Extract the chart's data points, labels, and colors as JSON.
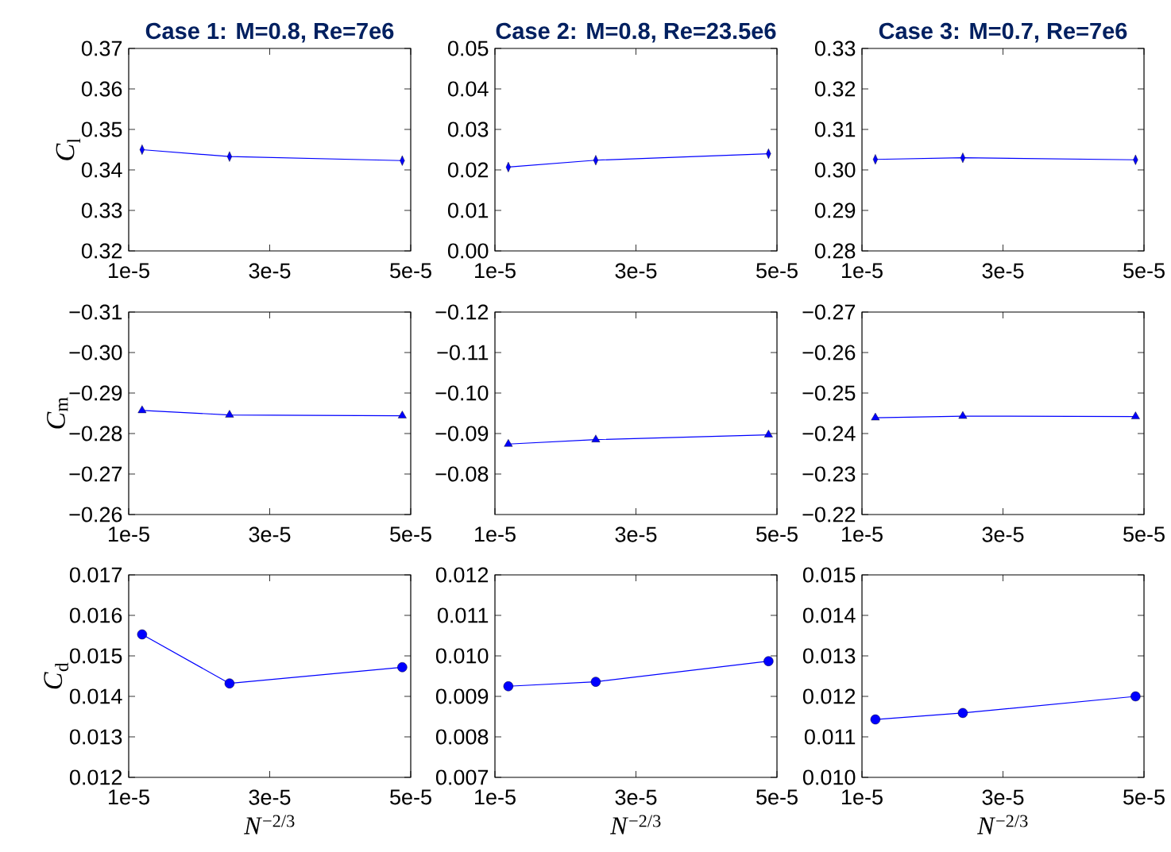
{
  "chart_data": [
    {
      "type": "line",
      "title": "Case 1: M=0.8, Re=7e6",
      "ylabel": "*C*$_{l}$",
      "x": [
        1.19e-05,
        2.43e-05,
        4.88e-05
      ],
      "values": [
        0.345,
        0.3433,
        0.3423
      ],
      "color": "#0000ff",
      "marker": "diamond",
      "xlim": [
        1e-05,
        5e-05
      ],
      "ylim": [
        0.32,
        0.37
      ],
      "xticks": [
        {
          "value": 1e-05,
          "label": "1e-5"
        },
        {
          "value": 3e-05,
          "label": "3e-5"
        },
        {
          "value": 5e-05,
          "label": "5e-5"
        }
      ],
      "yticks": [
        {
          "value": 0.32,
          "label": "0.32"
        },
        {
          "value": 0.33,
          "label": "0.33"
        },
        {
          "value": 0.34,
          "label": "0.34"
        },
        {
          "value": 0.35,
          "label": "0.35"
        },
        {
          "value": 0.36,
          "label": "0.36"
        },
        {
          "value": 0.37,
          "label": "0.37"
        }
      ]
    },
    {
      "type": "line",
      "title": "Case 2: M=0.8, Re=23.5e6",
      "x": [
        1.19e-05,
        2.43e-05,
        4.88e-05
      ],
      "values": [
        0.0207,
        0.0224,
        0.024
      ],
      "color": "#0000ff",
      "marker": "diamond",
      "xlim": [
        1e-05,
        5e-05
      ],
      "ylim": [
        0.0,
        0.05
      ],
      "xticks": [
        {
          "value": 1e-05,
          "label": "1e-5"
        },
        {
          "value": 3e-05,
          "label": "3e-5"
        },
        {
          "value": 5e-05,
          "label": "5e-5"
        }
      ],
      "yticks": [
        {
          "value": 0.0,
          "label": "0.00"
        },
        {
          "value": 0.01,
          "label": "0.01"
        },
        {
          "value": 0.02,
          "label": "0.02"
        },
        {
          "value": 0.03,
          "label": "0.03"
        },
        {
          "value": 0.04,
          "label": "0.04"
        },
        {
          "value": 0.05,
          "label": "0.05"
        }
      ]
    },
    {
      "type": "line",
      "title": "Case 3: M=0.7, Re=7e6",
      "x": [
        1.19e-05,
        2.43e-05,
        4.88e-05
      ],
      "values": [
        0.3026,
        0.303,
        0.3025
      ],
      "color": "#0000ff",
      "marker": "diamond",
      "xlim": [
        1e-05,
        5e-05
      ],
      "ylim": [
        0.28,
        0.33
      ],
      "xticks": [
        {
          "value": 1e-05,
          "label": "1e-5"
        },
        {
          "value": 3e-05,
          "label": "3e-5"
        },
        {
          "value": 5e-05,
          "label": "5e-5"
        }
      ],
      "yticks": [
        {
          "value": 0.28,
          "label": "0.28"
        },
        {
          "value": 0.29,
          "label": "0.29"
        },
        {
          "value": 0.3,
          "label": "0.30"
        },
        {
          "value": 0.31,
          "label": "0.31"
        },
        {
          "value": 0.32,
          "label": "0.32"
        },
        {
          "value": 0.33,
          "label": "0.33"
        }
      ]
    },
    {
      "type": "line",
      "ylabel": "*C*$_{m}$",
      "x": [
        1.19e-05,
        2.43e-05,
        4.88e-05
      ],
      "values": [
        -0.2857,
        -0.2846,
        -0.2844
      ],
      "color": "#0000ff",
      "marker": "triangle",
      "xlim": [
        1e-05,
        5e-05
      ],
      "ylim": [
        -0.26,
        -0.31
      ],
      "xticks": [
        {
          "value": 1e-05,
          "label": "1e-5"
        },
        {
          "value": 3e-05,
          "label": "3e-5"
        },
        {
          "value": 5e-05,
          "label": "5e-5"
        }
      ],
      "yticks": [
        {
          "value": -0.31,
          "label": "−0.31"
        },
        {
          "value": -0.3,
          "label": "−0.30"
        },
        {
          "value": -0.29,
          "label": "−0.29"
        },
        {
          "value": -0.28,
          "label": "−0.28"
        },
        {
          "value": -0.27,
          "label": "−0.27"
        },
        {
          "value": -0.26,
          "label": "−0.26"
        }
      ]
    },
    {
      "type": "line",
      "x": [
        1.19e-05,
        2.43e-05,
        4.88e-05
      ],
      "values": [
        -0.0874,
        -0.0885,
        -0.0897
      ],
      "color": "#0000ff",
      "marker": "triangle",
      "xlim": [
        1e-05,
        5e-05
      ],
      "ylim": [
        -0.07,
        -0.12
      ],
      "xticks": [
        {
          "value": 1e-05,
          "label": "1e-5"
        },
        {
          "value": 3e-05,
          "label": "3e-5"
        },
        {
          "value": 5e-05,
          "label": "5e-5"
        }
      ],
      "yticks": [
        {
          "value": -0.12,
          "label": "−0.12"
        },
        {
          "value": -0.11,
          "label": "−0.11"
        },
        {
          "value": -0.1,
          "label": "−0.10"
        },
        {
          "value": -0.09,
          "label": "−0.09"
        },
        {
          "value": -0.08,
          "label": "−0.08"
        }
      ]
    },
    {
      "type": "line",
      "x": [
        1.19e-05,
        2.43e-05,
        4.88e-05
      ],
      "values": [
        -0.2439,
        -0.2443,
        -0.2442
      ],
      "color": "#0000ff",
      "marker": "triangle",
      "xlim": [
        1e-05,
        5e-05
      ],
      "ylim": [
        -0.22,
        -0.27
      ],
      "xticks": [
        {
          "value": 1e-05,
          "label": "1e-5"
        },
        {
          "value": 3e-05,
          "label": "3e-5"
        },
        {
          "value": 5e-05,
          "label": "5e-5"
        }
      ],
      "yticks": [
        {
          "value": -0.27,
          "label": "−0.27"
        },
        {
          "value": -0.26,
          "label": "−0.26"
        },
        {
          "value": -0.25,
          "label": "−0.25"
        },
        {
          "value": -0.24,
          "label": "−0.24"
        },
        {
          "value": -0.23,
          "label": "−0.23"
        },
        {
          "value": -0.22,
          "label": "−0.22"
        }
      ]
    },
    {
      "type": "line",
      "ylabel": "*C*$_{d}$",
      "xlabel": "*N*$^{−2/3}$",
      "x": [
        1.19e-05,
        2.43e-05,
        4.88e-05
      ],
      "values": [
        0.01553,
        0.01432,
        0.01472
      ],
      "color": "#0000ff",
      "marker": "circle",
      "xlim": [
        1e-05,
        5e-05
      ],
      "ylim": [
        0.012,
        0.017
      ],
      "xticks": [
        {
          "value": 1e-05,
          "label": "1e-5"
        },
        {
          "value": 3e-05,
          "label": "3e-5"
        },
        {
          "value": 5e-05,
          "label": "5e-5"
        }
      ],
      "yticks": [
        {
          "value": 0.012,
          "label": "0.012"
        },
        {
          "value": 0.013,
          "label": "0.013"
        },
        {
          "value": 0.014,
          "label": "0.014"
        },
        {
          "value": 0.015,
          "label": "0.015"
        },
        {
          "value": 0.016,
          "label": "0.016"
        },
        {
          "value": 0.017,
          "label": "0.017"
        }
      ]
    },
    {
      "type": "line",
      "xlabel": "*N*$^{−2/3}$",
      "x": [
        1.19e-05,
        2.43e-05,
        4.88e-05
      ],
      "values": [
        0.00925,
        0.00936,
        0.00987
      ],
      "color": "#0000ff",
      "marker": "circle",
      "xlim": [
        1e-05,
        5e-05
      ],
      "ylim": [
        0.007,
        0.012
      ],
      "xticks": [
        {
          "value": 1e-05,
          "label": "1e-5"
        },
        {
          "value": 3e-05,
          "label": "3e-5"
        },
        {
          "value": 5e-05,
          "label": "5e-5"
        }
      ],
      "yticks": [
        {
          "value": 0.007,
          "label": "0.007"
        },
        {
          "value": 0.008,
          "label": "0.008"
        },
        {
          "value": 0.009,
          "label": "0.009"
        },
        {
          "value": 0.01,
          "label": "0.010"
        },
        {
          "value": 0.011,
          "label": "0.011"
        },
        {
          "value": 0.012,
          "label": "0.012"
        }
      ]
    },
    {
      "type": "line",
      "xlabel": "*N*$^{−2/3}$",
      "x": [
        1.19e-05,
        2.43e-05,
        4.88e-05
      ],
      "values": [
        0.01143,
        0.01159,
        0.012
      ],
      "color": "#0000ff",
      "marker": "circle",
      "xlim": [
        1e-05,
        5e-05
      ],
      "ylim": [
        0.01,
        0.015
      ],
      "xticks": [
        {
          "value": 1e-05,
          "label": "1e-5"
        },
        {
          "value": 3e-05,
          "label": "3e-5"
        },
        {
          "value": 5e-05,
          "label": "5e-5"
        }
      ],
      "yticks": [
        {
          "value": 0.01,
          "label": "0.010"
        },
        {
          "value": 0.011,
          "label": "0.011"
        },
        {
          "value": 0.012,
          "label": "0.012"
        },
        {
          "value": 0.013,
          "label": "0.013"
        },
        {
          "value": 0.014,
          "label": "0.014"
        },
        {
          "value": 0.015,
          "label": "0.015"
        }
      ]
    }
  ]
}
